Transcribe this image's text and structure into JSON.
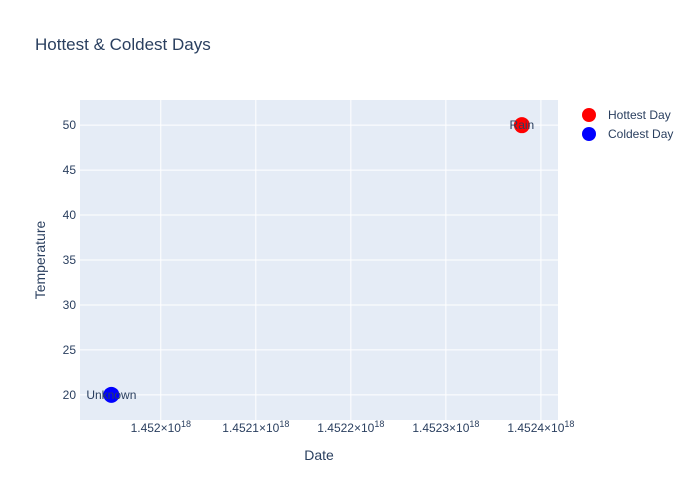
{
  "chart_data": {
    "type": "scatter",
    "title": "Hottest & Coldest Days",
    "xlabel": "Date",
    "ylabel": "Temperature",
    "xlim": [
      1.451915e+18,
      1.452418e+18
    ],
    "ylim": [
      17.2,
      52.8
    ],
    "x_ticks": [
      {
        "value": 1.452e+18,
        "mantissa": "1.452",
        "exp": "18"
      },
      {
        "value": 1.4521e+18,
        "mantissa": "1.4521",
        "exp": "18"
      },
      {
        "value": 1.4522e+18,
        "mantissa": "1.4522",
        "exp": "18"
      },
      {
        "value": 1.4523e+18,
        "mantissa": "1.4523",
        "exp": "18"
      },
      {
        "value": 1.4524e+18,
        "mantissa": "1.4524",
        "exp": "18"
      }
    ],
    "y_ticks": [
      20,
      25,
      30,
      35,
      40,
      45,
      50
    ],
    "grid": true,
    "legend_position": "top-right",
    "series": [
      {
        "name": "Hottest Day",
        "color": "#ff0000",
        "points": [
          {
            "x": 1.45238e+18,
            "y": 50,
            "label": "Rain"
          }
        ]
      },
      {
        "name": "Coldest Day",
        "color": "#0000ff",
        "points": [
          {
            "x": 1.451948e+18,
            "y": 20,
            "label": "Unknown"
          }
        ]
      }
    ]
  }
}
